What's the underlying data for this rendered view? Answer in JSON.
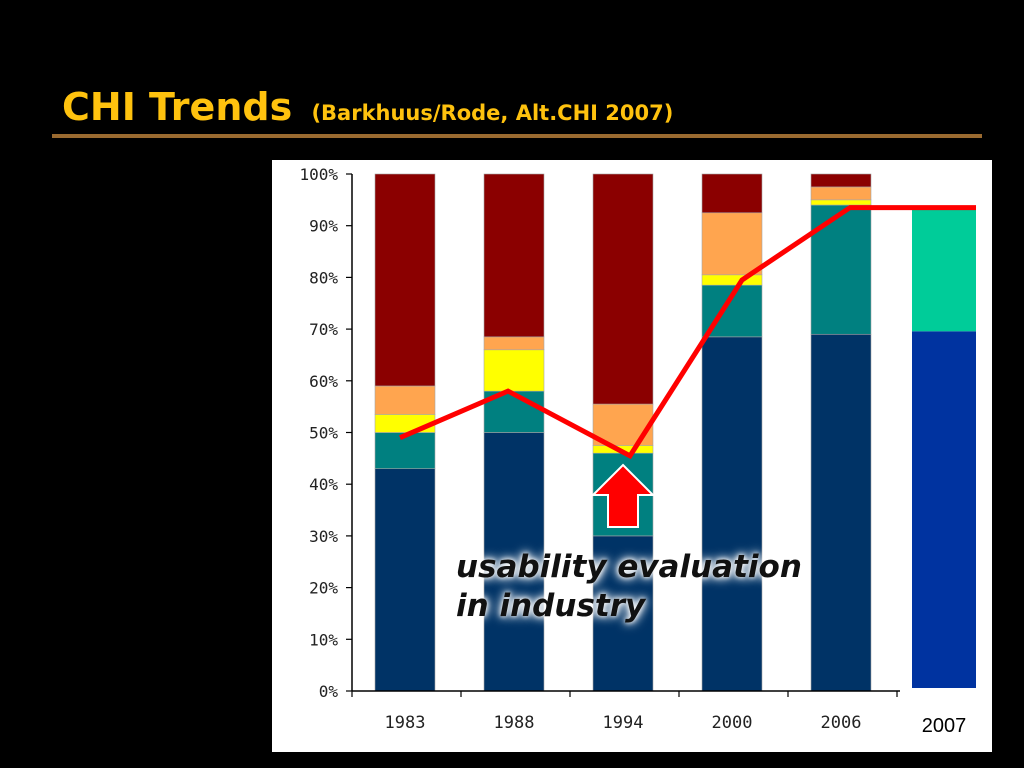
{
  "slide": {
    "title": "CHI Trends",
    "subtitle": "(Barkhuus/Rode, Alt.CHI 2007)"
  },
  "chart_data": {
    "type": "bar",
    "stacked": true,
    "categories": [
      "1983",
      "1988",
      "1994",
      "2000",
      "2006"
    ],
    "extra_category": "2007",
    "ylim": [
      0,
      100
    ],
    "yticks": [
      0,
      10,
      20,
      30,
      40,
      50,
      60,
      70,
      80,
      90,
      100
    ],
    "ytick_format": "{v}%",
    "grid": false,
    "series": [
      {
        "color": "#003366",
        "values": [
          43,
          50,
          30,
          68.5,
          69
        ]
      },
      {
        "color": "#008080",
        "values": [
          7,
          8,
          16,
          10,
          25
        ]
      },
      {
        "color": "#FFFF00",
        "values": [
          3.5,
          8,
          1.5,
          2,
          1
        ]
      },
      {
        "color": "#FFA54F",
        "values": [
          5.5,
          2.5,
          8,
          12,
          2.5
        ]
      },
      {
        "color": "#8B0000",
        "values": [
          41,
          31.5,
          44.5,
          7.5,
          2.5
        ]
      }
    ],
    "extra_bar": [
      {
        "color": "#0033A0",
        "value": 69
      },
      {
        "color": "#00CC99",
        "value": 24
      }
    ],
    "trend_line": {
      "color": "#FF0000",
      "values": [
        49,
        58,
        45.5,
        79.5,
        93.5,
        93.5
      ]
    },
    "annotation": {
      "lines": [
        "usability evaluation",
        "in industry"
      ],
      "arrow_color": "#FF0000"
    }
  }
}
